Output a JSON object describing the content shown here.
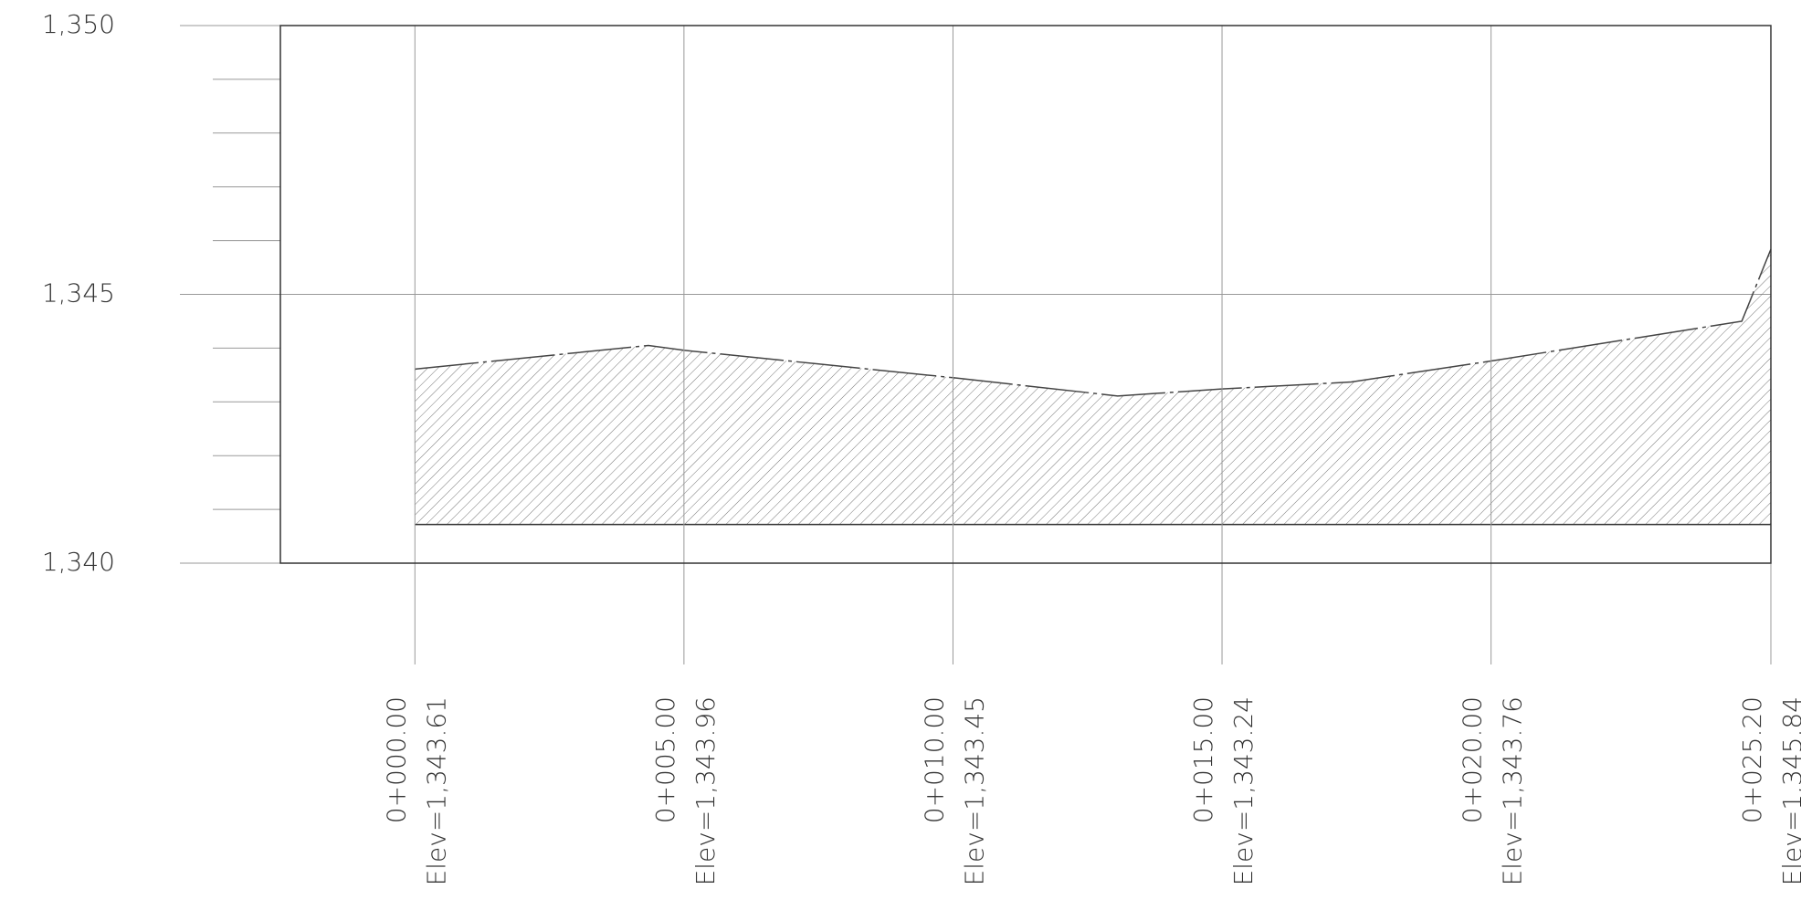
{
  "chart_data": {
    "type": "area",
    "x": [
      0,
      4.34,
      5,
      10,
      13.06,
      15,
      17.4,
      20,
      24.66,
      25.2
    ],
    "values": [
      1343.61,
      1344.05,
      1343.96,
      1343.45,
      1343.11,
      1343.24,
      1343.37,
      1343.76,
      1344.5,
      1345.84
    ],
    "datum": 1340.72,
    "color": "#444444",
    "hatch": true,
    "xlim": [
      -2.5,
      25.2
    ],
    "ylim": [
      1340,
      1350
    ],
    "yticks": [
      {
        "value": 1340,
        "label": "1,340"
      },
      {
        "value": 1345,
        "label": "1,345"
      },
      {
        "value": 1350,
        "label": "1,350"
      }
    ],
    "minor_yticks": [
      1341,
      1342,
      1343,
      1344,
      1346,
      1347,
      1348,
      1349
    ],
    "stations": [
      {
        "x": 0,
        "station": "0+000.00",
        "elev": "Elev=1,343.61"
      },
      {
        "x": 5,
        "station": "0+005.00",
        "elev": "Elev=1,343.96"
      },
      {
        "x": 10,
        "station": "0+010.00",
        "elev": "Elev=1,343.45"
      },
      {
        "x": 15,
        "station": "0+015.00",
        "elev": "Elev=1,343.24"
      },
      {
        "x": 20,
        "station": "0+020.00",
        "elev": "Elev=1,343.76"
      },
      {
        "x": 25.2,
        "station": "0+025.20",
        "elev": "Elev=1,345.84"
      }
    ]
  }
}
